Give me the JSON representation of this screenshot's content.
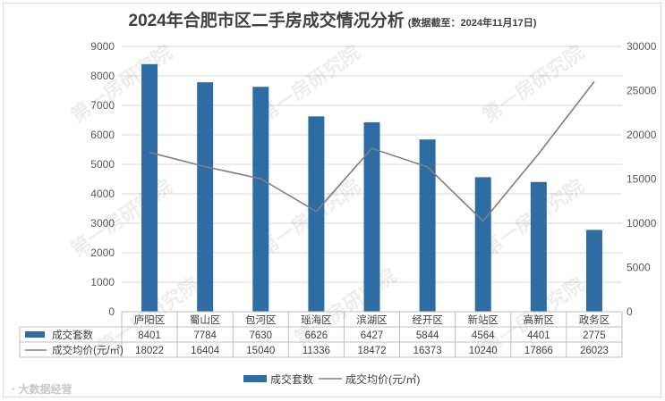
{
  "title": "2024年合肥市区二手房成交情况分析",
  "subtitle": "(数据截至：2024年11月17日)",
  "watermark": "第一房研究院",
  "brand": "大数据经营",
  "chart_data": {
    "type": "bar",
    "title": "2024年合肥市区二手房成交情况分析",
    "subtitle": "(数据截至：2024年11月17日)",
    "categories": [
      "庐阳区",
      "蜀山区",
      "包河区",
      "瑶海区",
      "滨湖区",
      "经开区",
      "新站区",
      "高新区",
      "政务区"
    ],
    "series": [
      {
        "name": "成交套数",
        "type": "bar",
        "axis": "left",
        "color": "#2e6ca4",
        "values": [
          8401,
          7784,
          7630,
          6626,
          6427,
          5844,
          4564,
          4401,
          2775
        ]
      },
      {
        "name": "成交均价(元/㎡)",
        "type": "line",
        "axis": "right",
        "color": "#7f7f7f",
        "values": [
          18022,
          16404,
          15040,
          11336,
          18472,
          16373,
          10240,
          17866,
          26023
        ]
      }
    ],
    "left_axis": {
      "min": 0,
      "max": 9000,
      "step": 1000,
      "ticks": [
        "0",
        "1000",
        "2000",
        "3000",
        "4000",
        "5000",
        "6000",
        "7000",
        "8000",
        "9000"
      ]
    },
    "right_axis": {
      "min": 0,
      "max": 30000,
      "step": 5000,
      "ticks": [
        "0",
        "5000",
        "10000",
        "15000",
        "20000",
        "25000",
        "30000"
      ]
    },
    "grid": true,
    "data_table": true,
    "legend_position": "bottom",
    "legend": {
      "bar_label": "成交套数",
      "line_label": "成交均价(元/㎡)"
    }
  }
}
